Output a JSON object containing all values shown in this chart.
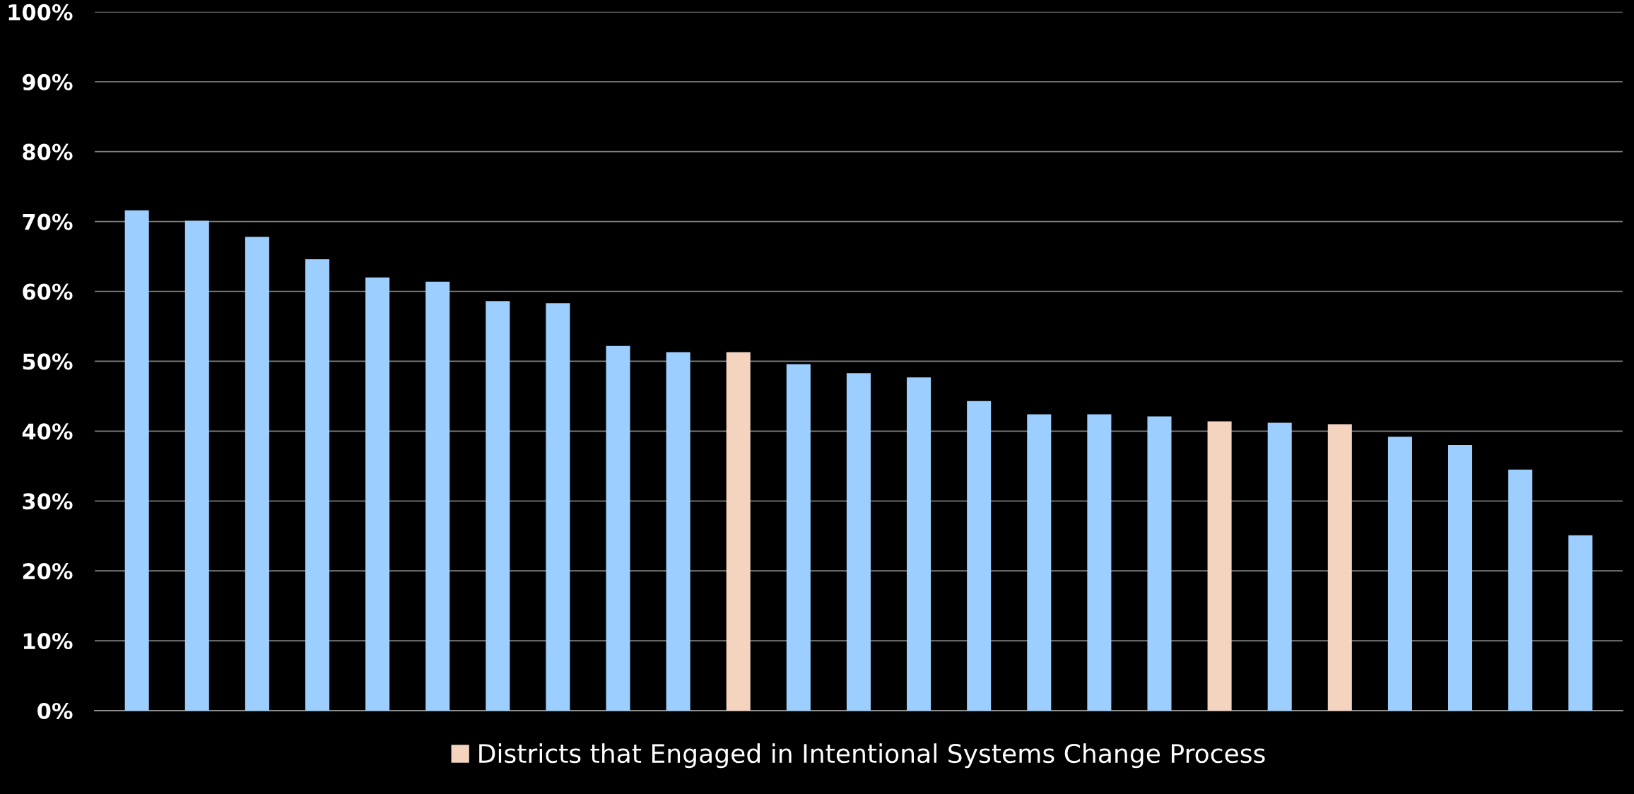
{
  "chart_data": {
    "type": "bar",
    "categories": [
      null,
      null,
      null,
      null,
      null,
      null,
      null,
      null,
      null,
      null,
      null,
      null,
      null,
      null,
      null,
      null,
      null,
      null,
      null,
      null,
      null,
      null,
      null,
      null,
      null
    ],
    "series": [
      {
        "color": "#9ccfff",
        "values": [
          71.6,
          70.1,
          67.8,
          64.6,
          62.0,
          61.4,
          58.6,
          58.3,
          52.2,
          51.3,
          null,
          49.6,
          48.3,
          47.7,
          44.3,
          42.4,
          42.4,
          42.1,
          null,
          41.2,
          null,
          39.2,
          38.0,
          34.5,
          25.1
        ]
      },
      {
        "name": "Districts that Engaged in Intentional Systems Change Process",
        "color": "#f5d4bf",
        "values": [
          null,
          null,
          null,
          null,
          null,
          null,
          null,
          null,
          null,
          null,
          51.3,
          null,
          null,
          null,
          null,
          null,
          null,
          null,
          41.4,
          null,
          41.0,
          null,
          null,
          null,
          null
        ]
      }
    ],
    "ylim": [
      0,
      100
    ],
    "yticks": [
      {
        "value": 0,
        "label": "0%"
      },
      {
        "value": 10,
        "label": "10%"
      },
      {
        "value": 20,
        "label": "20%"
      },
      {
        "value": 30,
        "label": "30%"
      },
      {
        "value": 40,
        "label": "40%"
      },
      {
        "value": 50,
        "label": "50%"
      },
      {
        "value": 60,
        "label": "60%"
      },
      {
        "value": 70,
        "label": "70%"
      },
      {
        "value": 80,
        "label": "80%"
      },
      {
        "value": 90,
        "label": "90%"
      },
      {
        "value": 100,
        "label": "100%"
      }
    ],
    "grid": "y",
    "legend": "bottom"
  }
}
